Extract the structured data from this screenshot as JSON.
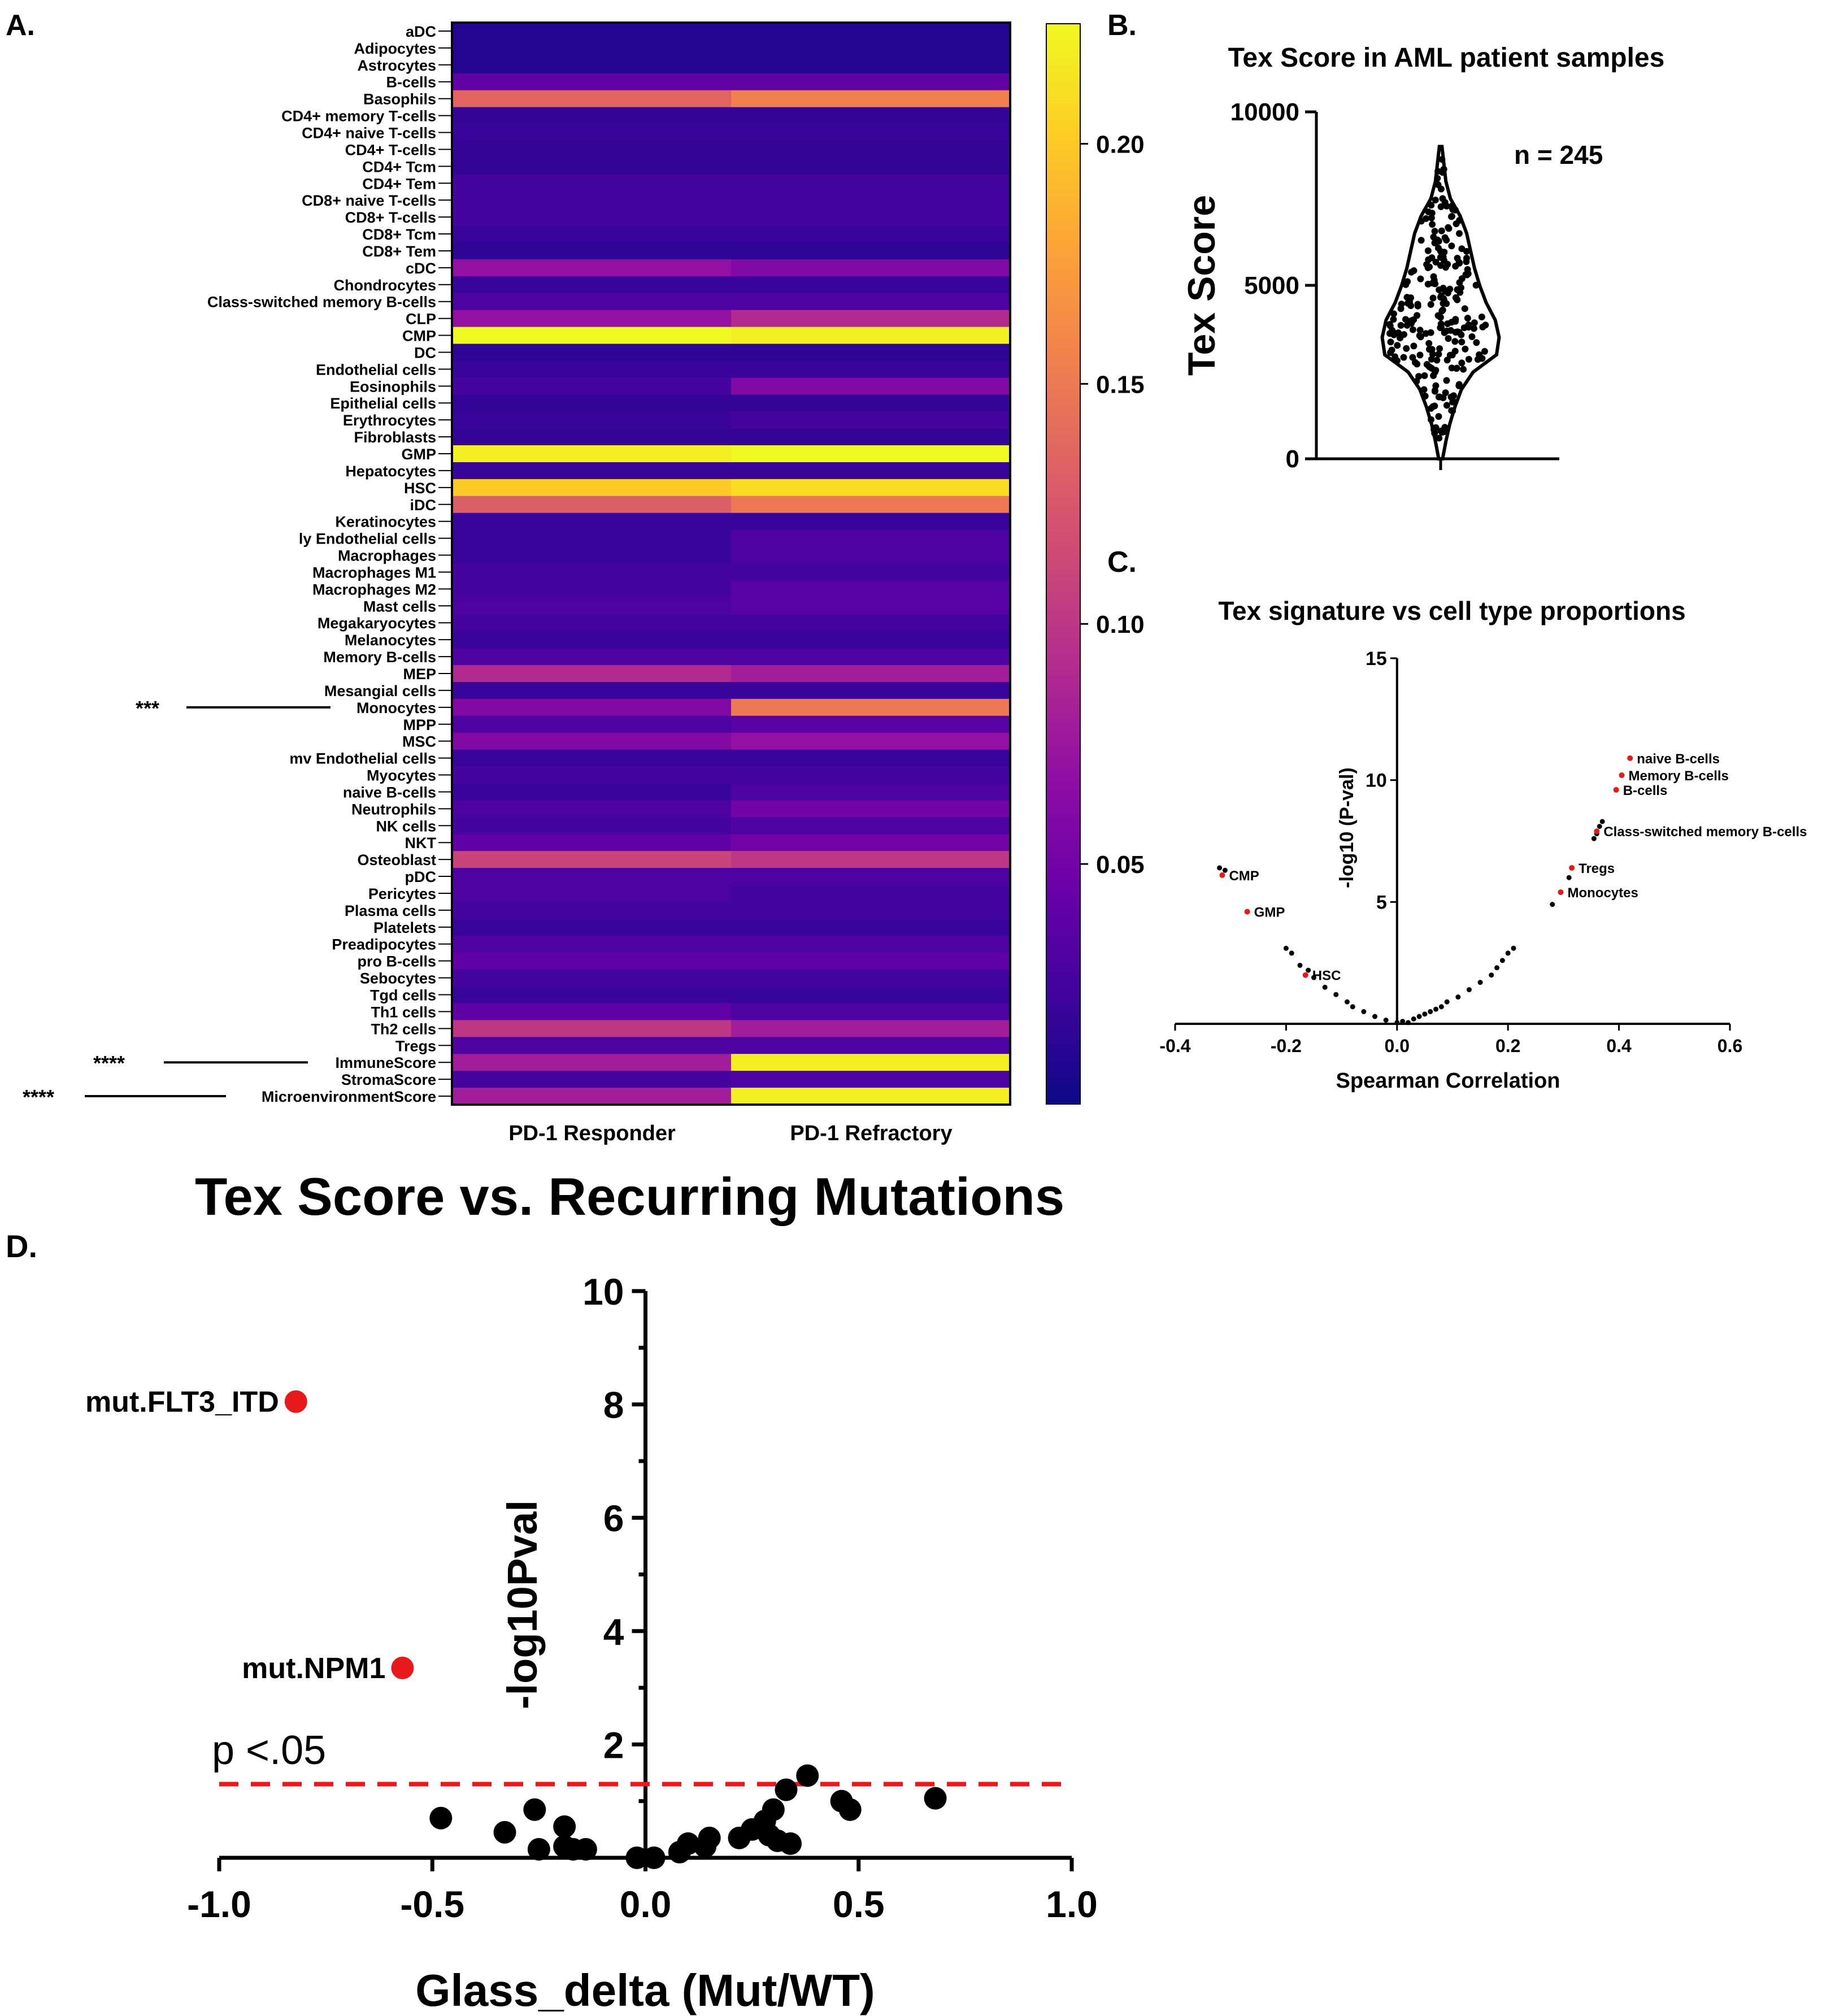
{
  "colors": {
    "cmap": [
      "#0d0887",
      "#3f049c",
      "#6a00a8",
      "#8f0da4",
      "#b12a90",
      "#cc4778",
      "#e16462",
      "#f2844b",
      "#fca636",
      "#fcce25",
      "#f0f921"
    ],
    "black": "#000000",
    "red": "#e8191b"
  },
  "panel_a": {
    "letter": "A.",
    "rows": [
      "aDC",
      "Adipocytes",
      "Astrocytes",
      "B-cells",
      "Basophils",
      "CD4+ memory T-cells",
      "CD4+ naive T-cells",
      "CD4+ T-cells",
      "CD4+ Tcm",
      "CD4+ Tem",
      "CD8+ naive T-cells",
      "CD8+ T-cells",
      "CD8+ Tcm",
      "CD8+ Tem",
      "cDC",
      "Chondrocytes",
      "Class-switched memory B-cells",
      "CLP",
      "CMP",
      "DC",
      "Endothelial cells",
      "Eosinophils",
      "Epithelial cells",
      "Erythrocytes",
      "Fibroblasts",
      "GMP",
      "Hepatocytes",
      "HSC",
      "iDC",
      "Keratinocytes",
      "ly Endothelial cells",
      "Macrophages",
      "Macrophages M1",
      "Macrophages M2",
      "Mast cells",
      "Megakaryocytes",
      "Melanocytes",
      "Memory B-cells",
      "MEP",
      "Mesangial cells",
      "Monocytes",
      "MPP",
      "MSC",
      "mv Endothelial cells",
      "Myocytes",
      "naive B-cells",
      "Neutrophils",
      "NK cells",
      "NKT",
      "Osteoblast",
      "pDC",
      "Pericytes",
      "Plasma cells",
      "Platelets",
      "Preadipocytes",
      "pro B-cells",
      "Sebocytes",
      "Tgd cells",
      "Th1 cells",
      "Th2 cells",
      "Tregs",
      "ImmuneScore",
      "StromaScore",
      "MicroenvironmentScore"
    ],
    "columns": [
      "PD-1 Responder",
      "PD-1 Refractory"
    ],
    "values": [
      [
        0.01,
        0.01
      ],
      [
        0.01,
        0.01
      ],
      [
        0.01,
        0.01
      ],
      [
        0.04,
        0.04
      ],
      [
        0.135,
        0.155
      ],
      [
        0.018,
        0.018
      ],
      [
        0.02,
        0.02
      ],
      [
        0.018,
        0.018
      ],
      [
        0.018,
        0.018
      ],
      [
        0.025,
        0.025
      ],
      [
        0.025,
        0.025
      ],
      [
        0.025,
        0.025
      ],
      [
        0.02,
        0.02
      ],
      [
        0.015,
        0.015
      ],
      [
        0.07,
        0.06
      ],
      [
        0.02,
        0.02
      ],
      [
        0.03,
        0.03
      ],
      [
        0.07,
        0.09
      ],
      [
        0.23,
        0.22
      ],
      [
        0.015,
        0.015
      ],
      [
        0.02,
        0.02
      ],
      [
        0.025,
        0.06
      ],
      [
        0.018,
        0.018
      ],
      [
        0.02,
        0.025
      ],
      [
        0.018,
        0.018
      ],
      [
        0.22,
        0.225
      ],
      [
        0.02,
        0.02
      ],
      [
        0.2,
        0.21
      ],
      [
        0.13,
        0.15
      ],
      [
        0.02,
        0.02
      ],
      [
        0.02,
        0.03
      ],
      [
        0.02,
        0.03
      ],
      [
        0.025,
        0.025
      ],
      [
        0.025,
        0.035
      ],
      [
        0.03,
        0.035
      ],
      [
        0.025,
        0.025
      ],
      [
        0.02,
        0.02
      ],
      [
        0.03,
        0.03
      ],
      [
        0.09,
        0.08
      ],
      [
        0.02,
        0.02
      ],
      [
        0.06,
        0.15
      ],
      [
        0.03,
        0.035
      ],
      [
        0.06,
        0.07
      ],
      [
        0.02,
        0.02
      ],
      [
        0.025,
        0.025
      ],
      [
        0.02,
        0.03
      ],
      [
        0.03,
        0.05
      ],
      [
        0.025,
        0.03
      ],
      [
        0.04,
        0.05
      ],
      [
        0.11,
        0.1
      ],
      [
        0.03,
        0.03
      ],
      [
        0.03,
        0.025
      ],
      [
        0.025,
        0.025
      ],
      [
        0.02,
        0.02
      ],
      [
        0.03,
        0.03
      ],
      [
        0.04,
        0.04
      ],
      [
        0.025,
        0.025
      ],
      [
        0.02,
        0.02
      ],
      [
        0.04,
        0.03
      ],
      [
        0.1,
        0.08
      ],
      [
        0.03,
        0.03
      ],
      [
        0.08,
        0.22
      ],
      [
        0.025,
        0.03
      ],
      [
        0.08,
        0.22
      ]
    ],
    "colorbar": {
      "min": 0.0,
      "max": 0.225,
      "ticks": [
        "0.20",
        "0.15",
        "0.10",
        "0.05"
      ],
      "tick_values": [
        0.2,
        0.15,
        0.1,
        0.05
      ]
    },
    "significance": [
      {
        "row": "Monocytes",
        "stars": "***"
      },
      {
        "row": "ImmuneScore",
        "stars": "****"
      },
      {
        "row": "MicroenvironmentScore",
        "stars": "****"
      }
    ]
  },
  "panel_b": {
    "letter": "B.",
    "title": "Tex Score in AML patient samples",
    "ylabel": "Tex Score",
    "yticks": [
      "10000",
      "5000",
      "0"
    ],
    "ylim": [
      0,
      10000
    ],
    "annotation": "n = 245",
    "n": 245,
    "violin_profile": [
      [
        0,
        0.03
      ],
      [
        500,
        0.08
      ],
      [
        1000,
        0.14
      ],
      [
        1500,
        0.22
      ],
      [
        2000,
        0.32
      ],
      [
        2500,
        0.5
      ],
      [
        3000,
        0.86
      ],
      [
        3500,
        0.9
      ],
      [
        4000,
        0.84
      ],
      [
        4500,
        0.7
      ],
      [
        5000,
        0.6
      ],
      [
        5500,
        0.52
      ],
      [
        6000,
        0.46
      ],
      [
        6500,
        0.4
      ],
      [
        7000,
        0.3
      ],
      [
        7500,
        0.15
      ],
      [
        8000,
        0.08
      ],
      [
        8500,
        0.05
      ],
      [
        9000,
        0.02
      ]
    ]
  },
  "panel_c": {
    "letter": "C.",
    "title": "Tex signature vs cell type proportions",
    "xlabel": "Spearman Correlation",
    "ylabel": "-log10 (P-val)",
    "xticks": [
      "-0.4",
      "-0.2",
      "0.0",
      "0.2",
      "0.4",
      "0.6"
    ],
    "xtick_values": [
      -0.4,
      -0.2,
      0.0,
      0.2,
      0.4,
      0.6
    ],
    "yticks": [
      "15",
      "10",
      "5"
    ],
    "ytick_values": [
      15,
      10,
      5
    ],
    "xlim": [
      -0.4,
      0.6
    ],
    "ylim": [
      0,
      15
    ],
    "labeled_points": [
      {
        "label": "naive B-cells",
        "x": 0.42,
        "y": 10.9
      },
      {
        "label": "Memory B-cells",
        "x": 0.405,
        "y": 10.2
      },
      {
        "label": "B-cells",
        "x": 0.395,
        "y": 9.6
      },
      {
        "label": "Class-switched memory B-cells",
        "x": 0.36,
        "y": 7.9
      },
      {
        "label": "Tregs",
        "x": 0.315,
        "y": 6.4
      },
      {
        "label": "Monocytes",
        "x": 0.295,
        "y": 5.4
      },
      {
        "label": "CMP",
        "x": -0.315,
        "y": 6.1
      },
      {
        "label": "GMP",
        "x": -0.27,
        "y": 4.6
      },
      {
        "label": "HSC",
        "x": -0.165,
        "y": 2.0
      }
    ],
    "points": [
      [
        -0.32,
        6.4
      ],
      [
        -0.31,
        6.3
      ],
      [
        -0.2,
        3.1
      ],
      [
        -0.19,
        2.9
      ],
      [
        -0.175,
        2.4
      ],
      [
        -0.16,
        2.2
      ],
      [
        -0.15,
        1.9
      ],
      [
        -0.13,
        1.5
      ],
      [
        -0.11,
        1.2
      ],
      [
        -0.09,
        0.9
      ],
      [
        -0.08,
        0.7
      ],
      [
        -0.06,
        0.5
      ],
      [
        -0.04,
        0.3
      ],
      [
        -0.02,
        0.15
      ],
      [
        0.0,
        0.05
      ],
      [
        0.01,
        0.1
      ],
      [
        0.02,
        0.05
      ],
      [
        0.03,
        0.2
      ],
      [
        0.04,
        0.3
      ],
      [
        0.05,
        0.4
      ],
      [
        0.06,
        0.5
      ],
      [
        0.07,
        0.6
      ],
      [
        0.08,
        0.7
      ],
      [
        0.09,
        0.9
      ],
      [
        0.11,
        1.1
      ],
      [
        0.13,
        1.4
      ],
      [
        0.15,
        1.7
      ],
      [
        0.17,
        2.0
      ],
      [
        0.18,
        2.3
      ],
      [
        0.19,
        2.6
      ],
      [
        0.2,
        2.9
      ],
      [
        0.21,
        3.1
      ],
      [
        0.28,
        4.9
      ],
      [
        0.31,
        6.0
      ],
      [
        0.355,
        7.6
      ],
      [
        0.36,
        7.8
      ],
      [
        0.365,
        8.1
      ],
      [
        0.37,
        8.3
      ]
    ]
  },
  "panel_d": {
    "letter": "D.",
    "title": "Tex Score vs. Recurring Mutations",
    "xlabel": "Glass_delta (Mut/WT)",
    "ylabel": "-log10Pval",
    "xticks": [
      "-1.0",
      "-0.5",
      "0.0",
      "0.5",
      "1.0"
    ],
    "xtick_values": [
      -1.0,
      -0.5,
      0.0,
      0.5,
      1.0
    ],
    "yticks": [
      "10",
      "8",
      "6",
      "4",
      "2"
    ],
    "ytick_values": [
      10,
      8,
      6,
      4,
      2
    ],
    "xlim": [
      -1.0,
      1.0
    ],
    "ylim": [
      0,
      10
    ],
    "threshold_label": "p <.05",
    "threshold": 1.3,
    "highlighted": [
      {
        "label": "mut.FLT3_ITD",
        "x": -0.82,
        "y": 8.05
      },
      {
        "label": "mut.NPM1",
        "x": -0.57,
        "y": 3.35
      }
    ],
    "points": [
      [
        -0.48,
        0.7
      ],
      [
        -0.33,
        0.45
      ],
      [
        -0.26,
        0.85
      ],
      [
        -0.25,
        0.15
      ],
      [
        -0.19,
        0.55
      ],
      [
        -0.19,
        0.2
      ],
      [
        -0.17,
        0.15
      ],
      [
        -0.14,
        0.15
      ],
      [
        -0.02,
        0.0
      ],
      [
        0.02,
        0.0
      ],
      [
        0.08,
        0.1
      ],
      [
        0.1,
        0.25
      ],
      [
        0.14,
        0.2
      ],
      [
        0.15,
        0.35
      ],
      [
        0.22,
        0.35
      ],
      [
        0.25,
        0.5
      ],
      [
        0.28,
        0.65
      ],
      [
        0.29,
        0.4
      ],
      [
        0.3,
        0.85
      ],
      [
        0.31,
        0.3
      ],
      [
        0.33,
        1.2
      ],
      [
        0.34,
        0.25
      ],
      [
        0.38,
        1.45
      ],
      [
        0.46,
        1.0
      ],
      [
        0.48,
        0.85
      ],
      [
        0.68,
        1.05
      ]
    ]
  }
}
